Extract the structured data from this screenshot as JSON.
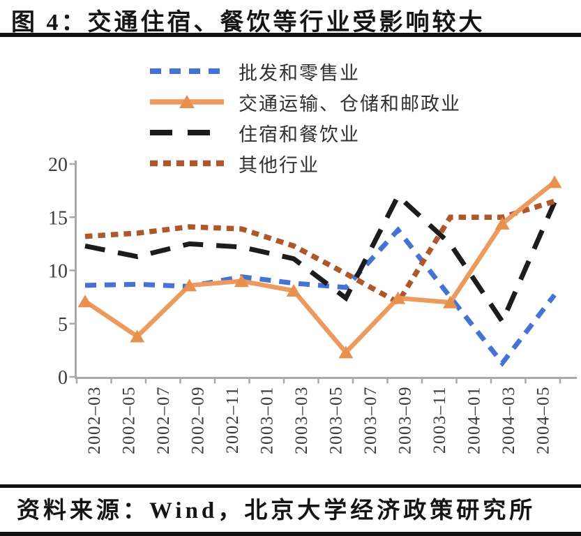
{
  "title": "图 4：交通住宿、餐饮等行业受影响较大",
  "source_line": "资料来源：Wind，北京大学经济政策研究所",
  "colors": {
    "axis": "#A9A9A9",
    "tick_label": "#3A3A3A",
    "rule": "#111111",
    "background": "#FFFFFF"
  },
  "chart_data": {
    "type": "line",
    "title": "图 4：交通住宿、餐饮等行业受影响较大",
    "xlabel": "",
    "ylabel": "",
    "ylim": [
      0,
      20
    ],
    "yticks": [
      0,
      5,
      10,
      15,
      20
    ],
    "grid": false,
    "legend_position": "top-left",
    "x_axis_tick_labels": [
      "2002–03",
      "2002–05",
      "2002–07",
      "2002–09",
      "2002–11",
      "2003–01",
      "2003–03",
      "2003–05",
      "2003–07",
      "2003–09",
      "2003–11",
      "2004–01",
      "2004–03",
      "2004–05"
    ],
    "points_per_series": 10,
    "point_dates": [
      "2002-03",
      "2002-05",
      "2002-09",
      "2002-11",
      "2003-03",
      "2003-05",
      "2003-09",
      "2003-11",
      "2004-03",
      "2004-05"
    ],
    "series": [
      {
        "name": "批发和零售业",
        "color": "#4573D4",
        "line": "dashed",
        "marker": "none",
        "values": [
          8.6,
          8.7,
          8.5,
          9.4,
          8.8,
          8.4,
          13.8,
          7.5,
          1.3,
          7.7
        ]
      },
      {
        "name": "交通运输、仓储和邮政业",
        "color": "#EC9A5D",
        "marker_fill": "#E8914F",
        "line": "solid",
        "marker": "triangle",
        "values": [
          7.1,
          3.8,
          8.6,
          9.0,
          8.1,
          2.3,
          7.4,
          7.0,
          14.4,
          18.3
        ]
      },
      {
        "name": "住宿和餐饮业",
        "color": "#1C1C1C",
        "line": "long-dash",
        "marker": "none",
        "values": [
          12.3,
          11.3,
          12.5,
          12.2,
          11.1,
          7.4,
          17.0,
          12.5,
          5.2,
          16.4
        ]
      },
      {
        "name": "其他行业",
        "color": "#AC582A",
        "line": "short-dash",
        "marker": "none",
        "values": [
          13.2,
          13.5,
          14.1,
          13.9,
          12.3,
          9.7,
          7.0,
          15.0,
          15.0,
          16.5
        ]
      }
    ]
  }
}
